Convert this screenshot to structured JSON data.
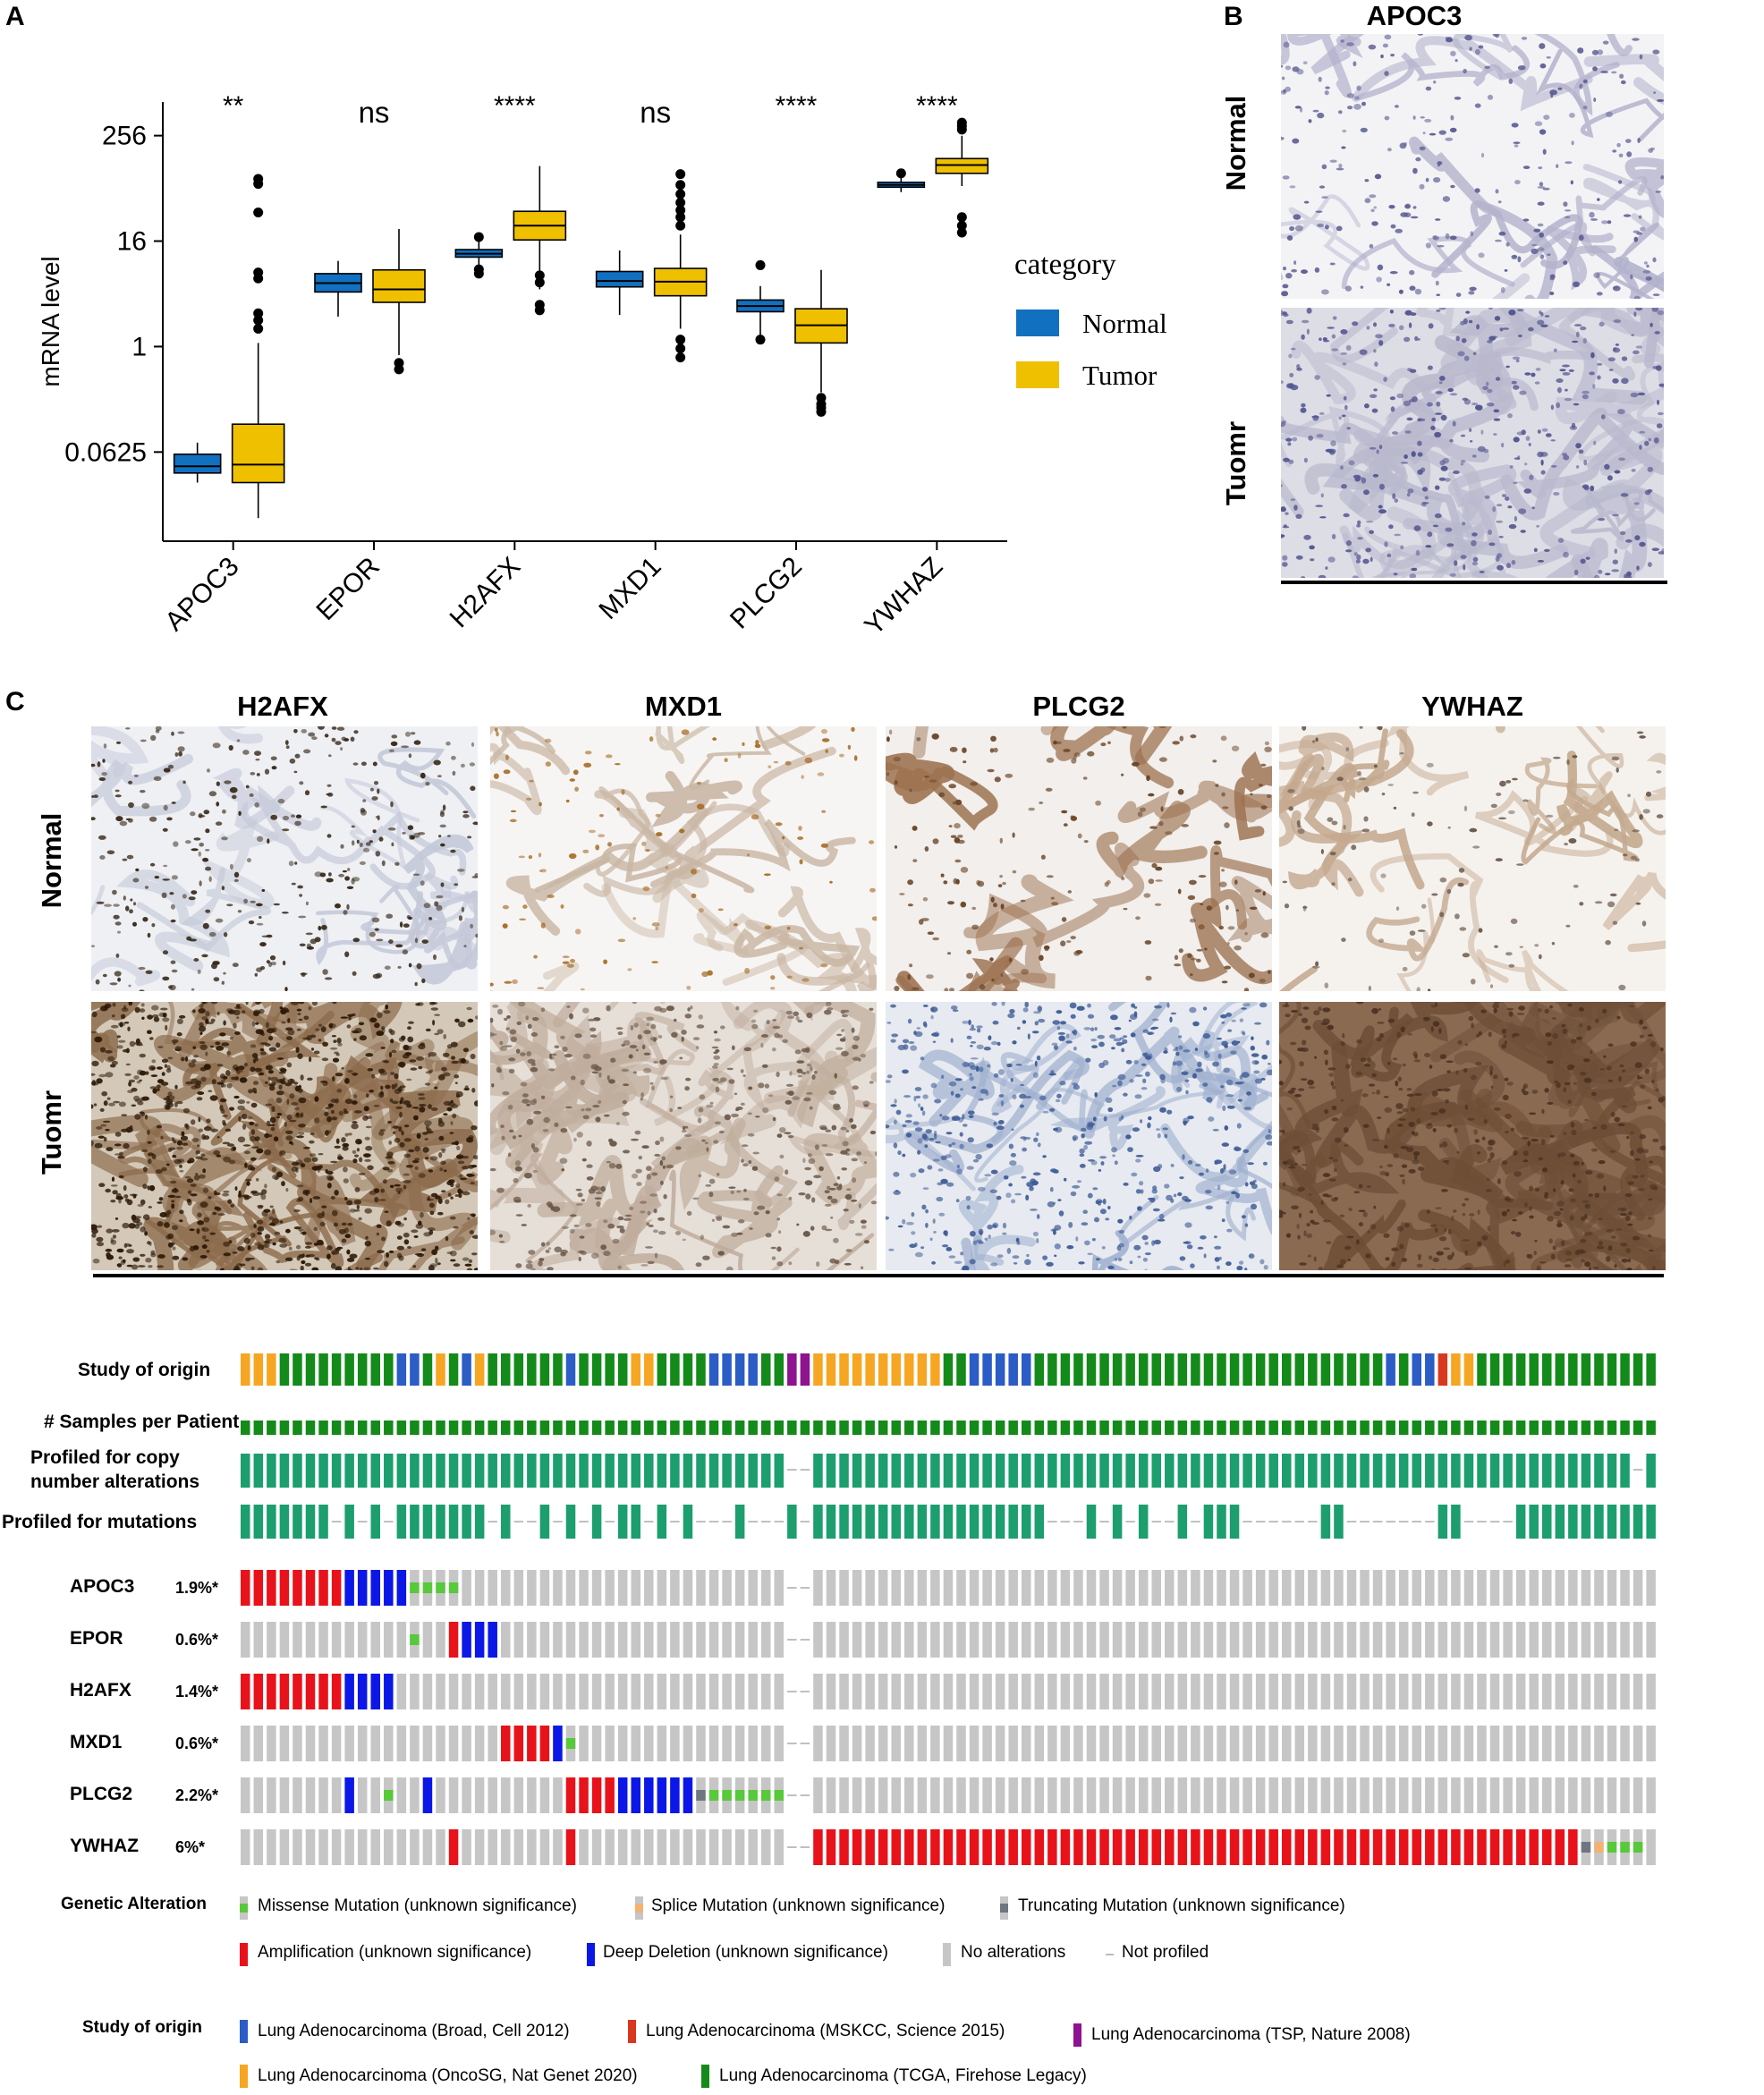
{
  "panels": {
    "a": "A",
    "b": "B",
    "c": "C"
  },
  "colors": {
    "normal": "#1170C0",
    "tumor": "#EFC000",
    "onco_green_study": "#138A1A",
    "onco_teal": "#1C9E6E",
    "amplification": "#E8121B",
    "deep_deletion": "#0A17E6",
    "missense": "#57C93A",
    "no_alteration": "#C6C6C6",
    "truncating": "#6E7681",
    "splice": "#F2B272",
    "broad": "#2C5CC5",
    "mskcc": "#D8381F",
    "tsp": "#8E1390",
    "oncosg": "#F6A623",
    "tcga": "#138A1A"
  },
  "chart_data": {
    "type": "box",
    "ylabel": "mRNA level",
    "yscale": "log2",
    "yticks": [
      "0.0625",
      "1",
      "16",
      "256"
    ],
    "ytick_values": [
      0.0625,
      1,
      16,
      256
    ],
    "ylim": [
      0.006,
      620
    ],
    "categories": [
      "APOC3",
      "EPOR",
      "H2AFX",
      "MXD1",
      "PLCG2",
      "YWHAZ"
    ],
    "significance": [
      "**",
      "ns",
      "****",
      "ns",
      "****",
      "****"
    ],
    "legend_title": "category",
    "series": [
      {
        "name": "Normal",
        "boxes": [
          {
            "wlo": 0.028,
            "q1": 0.036,
            "med": 0.043,
            "q3": 0.059,
            "whi": 0.08,
            "out": []
          },
          {
            "wlo": 2.2,
            "q1": 4.2,
            "med": 5.3,
            "q3": 6.8,
            "whi": 9.5,
            "out": []
          },
          {
            "wlo": 6.2,
            "q1": 10.5,
            "med": 11.5,
            "q3": 12.8,
            "whi": 17.0,
            "out": [
              6.8,
              7.6,
              17.8
            ]
          },
          {
            "wlo": 2.3,
            "q1": 4.8,
            "med": 5.6,
            "q3": 7.2,
            "whi": 12.5,
            "out": []
          },
          {
            "wlo": 1.2,
            "q1": 2.5,
            "med": 2.9,
            "q3": 3.4,
            "whi": 4.9,
            "out": [
              1.2,
              8.5
            ]
          },
          {
            "wlo": 58.0,
            "q1": 66.0,
            "med": 70.0,
            "q3": 75.0,
            "whi": 86.0,
            "out": [
              95.0
            ]
          }
        ]
      },
      {
        "name": "Tumor",
        "boxes": [
          {
            "wlo": 0.011,
            "q1": 0.028,
            "med": 0.045,
            "q3": 0.13,
            "whi": 1.1,
            "out": [
              1.6,
              2.0,
              2.4,
              6.0,
              7.0,
              34.0,
              72.0,
              82.0
            ]
          },
          {
            "wlo": 0.8,
            "q1": 3.2,
            "med": 4.5,
            "q3": 7.5,
            "whi": 22.0,
            "out": [
              0.55,
              0.65
            ]
          },
          {
            "wlo": 4.5,
            "q1": 16.5,
            "med": 24.0,
            "q3": 35.0,
            "whi": 115.0,
            "out": [
              2.6,
              3.0,
              5.4,
              6.5
            ]
          },
          {
            "wlo": 1.6,
            "q1": 3.8,
            "med": 5.5,
            "q3": 7.8,
            "whi": 19.0,
            "out": [
              0.75,
              0.95,
              1.2,
              24.0,
              30.0,
              36.0,
              44.0,
              55.0,
              70.0,
              93.0
            ]
          },
          {
            "wlo": 0.3,
            "q1": 1.1,
            "med": 1.75,
            "q3": 2.7,
            "whi": 7.5,
            "out": [
              0.18,
              0.2,
              0.22,
              0.26
            ]
          },
          {
            "wlo": 68.0,
            "q1": 95.0,
            "med": 118.0,
            "q3": 140.0,
            "whi": 255.0,
            "out": [
              20.0,
              24.0,
              30.0,
              300.0,
              330.0,
              360.0
            ]
          }
        ]
      }
    ]
  },
  "panel_b": {
    "title": "APOC3",
    "row_normal": "Normal",
    "row_tumor": "Tuomr"
  },
  "panel_c": {
    "titles": [
      "H2AFX",
      "MXD1",
      "PLCG2",
      "YWHAZ"
    ],
    "row_normal": "Normal",
    "row_tumor": "Tuomr"
  },
  "oncoprint": {
    "tracks": {
      "study": "Study of origin",
      "samples": "# Samples per Patient",
      "cna_line1": "Profiled for copy",
      "cna_line2": "number alterations",
      "mut": "Profiled for mutations"
    },
    "genes": [
      {
        "name": "APOC3",
        "pct": "1.9%*"
      },
      {
        "name": "EPOR",
        "pct": "0.6%*"
      },
      {
        "name": "H2AFX",
        "pct": "1.4%*"
      },
      {
        "name": "MXD1",
        "pct": "0.6%*"
      },
      {
        "name": "PLCG2",
        "pct": "2.2%*"
      },
      {
        "name": "YWHAZ",
        "pct": "6%*"
      }
    ],
    "legend": {
      "genetic_title": "Genetic Alteration",
      "missense": "Missense Mutation (unknown significance)",
      "splice": "Splice Mutation (unknown significance)",
      "truncating": "Truncating Mutation (unknown significance)",
      "amp": "Amplification (unknown significance)",
      "del": "Deep Deletion (unknown significance)",
      "none": "No alterations",
      "notprof": "Not profiled",
      "study_title": "Study of origin",
      "broad": "Lung Adenocarcinoma (Broad, Cell 2012)",
      "mskcc": "Lung Adenocarcinoma (MSKCC, Science 2015)",
      "tsp": "Lung Adenocarcinoma (TSP, Nature 2008)",
      "oncosg": "Lung Adenocarcinoma (OncoSG, Nat Genet 2020)",
      "tcga": "Lung Adenocarcinoma (TCGA, Firehose Legacy)"
    }
  }
}
